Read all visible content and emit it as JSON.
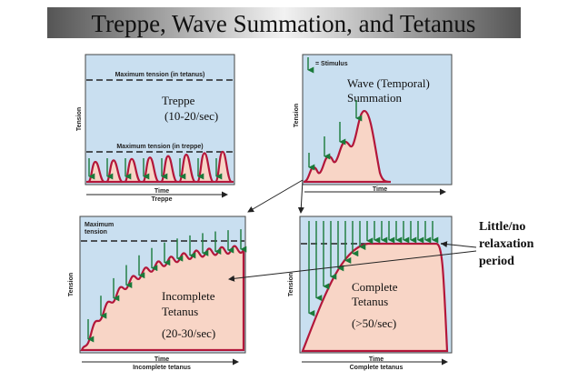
{
  "title": "Treppe, Wave Summation, and Tetanus",
  "panels": [
    {
      "tetanus_line": "Maximum tension (in tetanus)",
      "treppe_line": "Maximum tension (in treppe)",
      "label": [
        "Treppe",
        "(10-20/sec)"
      ],
      "y_axis": "Tension",
      "x_axis": "Time",
      "caption": "Treppe"
    },
    {
      "legend": "= Stimulus",
      "label": [
        "Wave (Temporal)",
        "Summation"
      ],
      "y_axis": "Tension",
      "x_axis": "Time"
    },
    {
      "max_line": [
        "Maximum",
        "tension"
      ],
      "label": [
        "Incomplete",
        "Tetanus",
        "(20-30/sec)"
      ],
      "y_axis": "Tension",
      "x_axis": "Time",
      "caption": "Incomplete tetanus"
    },
    {
      "label": [
        "Complete",
        "Tetanus",
        "(>50/sec)"
      ],
      "y_axis": "Tension",
      "x_axis": "Time",
      "caption": "Complete tetanus"
    }
  ],
  "annotation": [
    "Little/no",
    "relaxation",
    "period"
  ]
}
